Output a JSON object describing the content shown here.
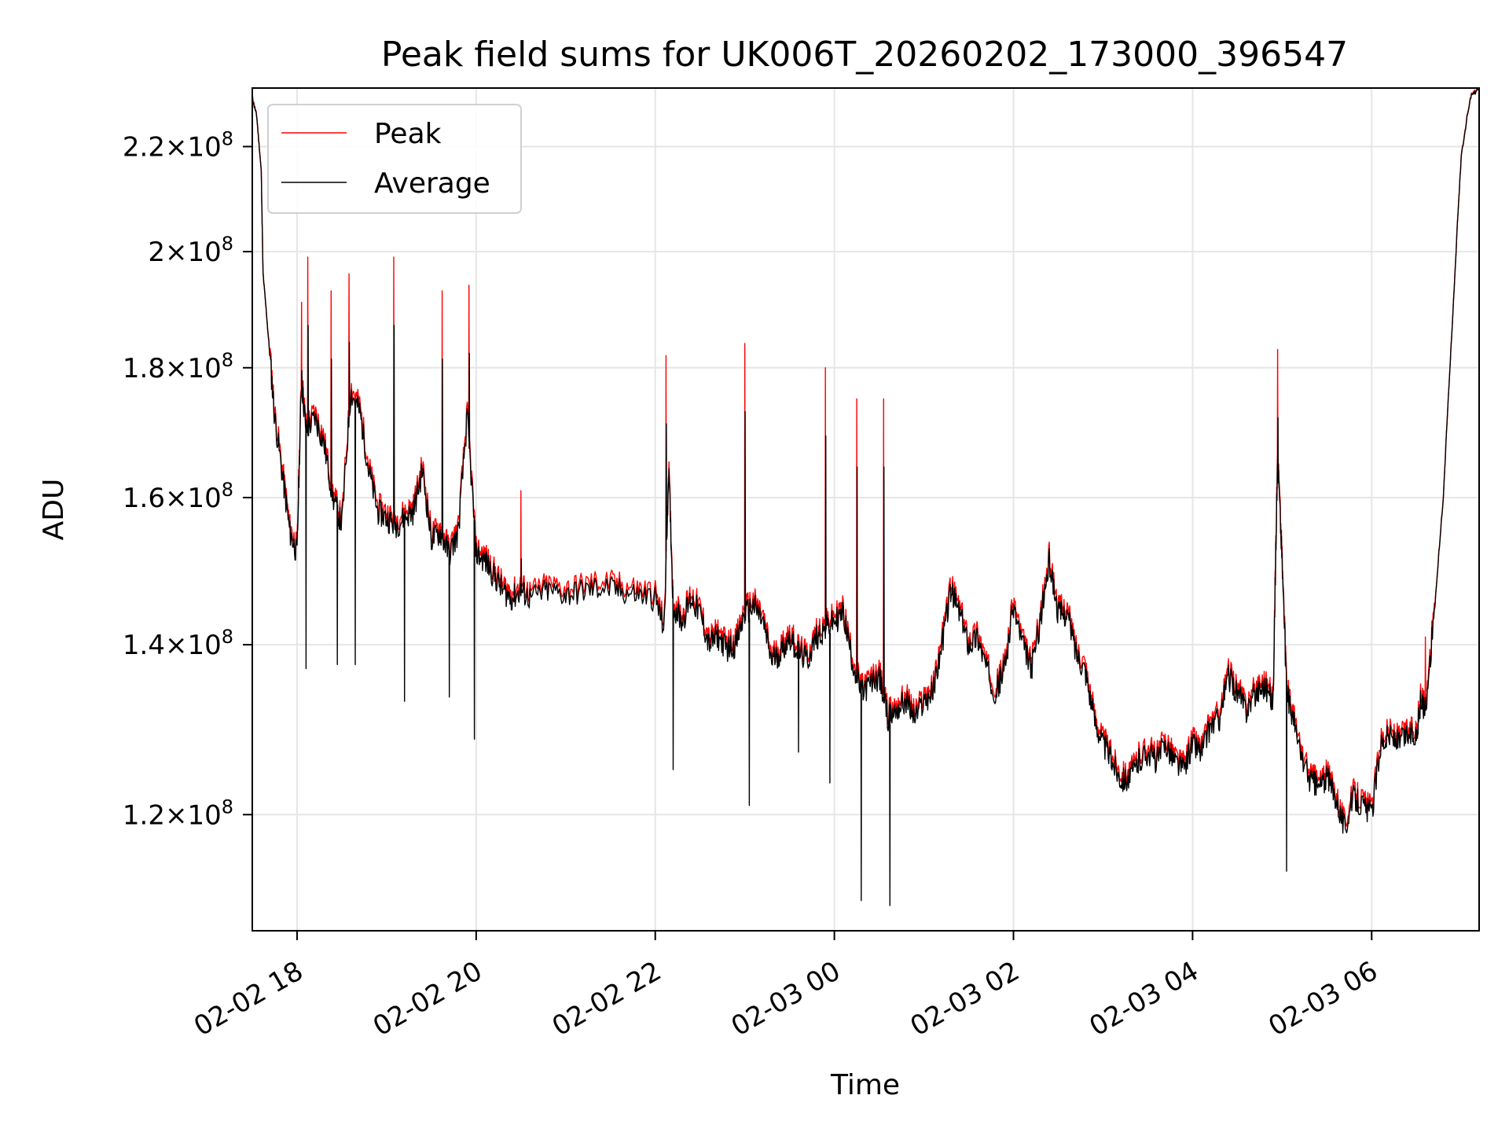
{
  "chart_data": {
    "type": "line",
    "title": "Peak field sums for UK006T_20260202_173000_396547",
    "xlabel": "Time",
    "ylabel": "ADU",
    "y_scale": "log",
    "xlim_hours": [
      17.5,
      7.2
    ],
    "ylim": [
      108000000.0,
      232000000.0
    ],
    "x_ticks": [
      {
        "label": "02-02 18",
        "hour": 18
      },
      {
        "label": "02-02 20",
        "hour": 20
      },
      {
        "label": "02-02 22",
        "hour": 22
      },
      {
        "label": "02-03 00",
        "hour": 24
      },
      {
        "label": "02-03 02",
        "hour": 26
      },
      {
        "label": "02-03 04",
        "hour": 28
      },
      {
        "label": "02-03 06",
        "hour": 30
      }
    ],
    "y_ticks": [
      {
        "mant": "1.2",
        "exp": "8",
        "value": 120000000
      },
      {
        "mant": "1.4",
        "exp": "8",
        "value": 140000000
      },
      {
        "mant": "1.6",
        "exp": "8",
        "value": 160000000
      },
      {
        "mant": "1.8",
        "exp": "8",
        "value": 180000000
      },
      {
        "mant": "2",
        "exp": "8",
        "value": 200000000
      },
      {
        "mant": "2.2",
        "exp": "8",
        "value": 220000000
      }
    ],
    "legend": {
      "position": "top-left",
      "entries": [
        {
          "label": "Peak",
          "color": "#ff0000"
        },
        {
          "label": "Average",
          "color": "#000000"
        }
      ]
    },
    "grid": true,
    "series": [
      {
        "name": "Average",
        "color": "#000000",
        "points": [
          [
            17.5,
            230.0
          ],
          [
            17.55,
            226.0
          ],
          [
            17.6,
            215.0
          ],
          [
            17.62,
            196.0
          ],
          [
            17.68,
            185.0
          ],
          [
            17.75,
            172.0
          ],
          [
            17.85,
            162.0
          ],
          [
            17.92,
            155.0
          ],
          [
            18.0,
            152.0
          ],
          [
            18.05,
            178.0
          ],
          [
            18.1,
            170.0
          ],
          [
            18.2,
            172.0
          ],
          [
            18.3,
            168.0
          ],
          [
            18.4,
            160.0
          ],
          [
            18.5,
            156.0
          ],
          [
            18.6,
            176.0
          ],
          [
            18.7,
            173.0
          ],
          [
            18.8,
            164.0
          ],
          [
            18.9,
            158.0
          ],
          [
            19.0,
            157.0
          ],
          [
            19.1,
            156.0
          ],
          [
            19.2,
            157.0
          ],
          [
            19.3,
            158.0
          ],
          [
            19.4,
            164.0
          ],
          [
            19.5,
            154.0
          ],
          [
            19.6,
            155.0
          ],
          [
            19.7,
            152.0
          ],
          [
            19.8,
            155.0
          ],
          [
            19.9,
            172.0
          ],
          [
            20.0,
            152.0
          ],
          [
            20.1,
            151.0
          ],
          [
            20.2,
            149.0
          ],
          [
            20.3,
            147.0
          ],
          [
            20.4,
            146.0
          ],
          [
            20.5,
            147.0
          ],
          [
            20.6,
            146.0
          ],
          [
            20.8,
            147.0
          ],
          [
            21.0,
            146.5
          ],
          [
            21.2,
            147.0
          ],
          [
            21.4,
            147.5
          ],
          [
            21.6,
            147.0
          ],
          [
            21.8,
            146.5
          ],
          [
            22.0,
            146.0
          ],
          [
            22.1,
            142.0
          ],
          [
            22.15,
            164.0
          ],
          [
            22.2,
            145.0
          ],
          [
            22.3,
            143.0
          ],
          [
            22.4,
            146.0
          ],
          [
            22.5,
            144.0
          ],
          [
            22.6,
            140.0
          ],
          [
            22.7,
            141.0
          ],
          [
            22.8,
            139.5
          ],
          [
            22.9,
            140.0
          ],
          [
            23.0,
            144.0
          ],
          [
            23.1,
            145.0
          ],
          [
            23.2,
            143.0
          ],
          [
            23.3,
            138.0
          ],
          [
            23.4,
            139.0
          ],
          [
            23.5,
            141.0
          ],
          [
            23.6,
            139.0
          ],
          [
            23.7,
            138.0
          ],
          [
            23.8,
            141.0
          ],
          [
            23.9,
            142.0
          ],
          [
            24.0,
            143.0
          ],
          [
            24.1,
            144.0
          ],
          [
            24.2,
            138.0
          ],
          [
            24.3,
            134.0
          ],
          [
            24.4,
            135.0
          ],
          [
            24.5,
            136.0
          ],
          [
            24.6,
            131.0
          ],
          [
            24.7,
            132.0
          ],
          [
            24.8,
            133.0
          ],
          [
            24.9,
            131.0
          ],
          [
            25.0,
            133.0
          ],
          [
            25.1,
            134.0
          ],
          [
            25.2,
            140.0
          ],
          [
            25.3,
            147.0
          ],
          [
            25.4,
            144.0
          ],
          [
            25.5,
            140.0
          ],
          [
            25.6,
            141.0
          ],
          [
            25.7,
            137.0
          ],
          [
            25.8,
            134.0
          ],
          [
            25.9,
            137.0
          ],
          [
            26.0,
            145.0
          ],
          [
            26.1,
            140.0
          ],
          [
            26.2,
            137.0
          ],
          [
            26.3,
            143.0
          ],
          [
            26.4,
            151.0
          ],
          [
            26.5,
            144.0
          ],
          [
            26.6,
            144.0
          ],
          [
            26.7,
            139.0
          ],
          [
            26.8,
            137.0
          ],
          [
            26.9,
            131.0
          ],
          [
            27.0,
            128.0
          ],
          [
            27.1,
            126.0
          ],
          [
            27.2,
            124.0
          ],
          [
            27.3,
            124.0
          ],
          [
            27.4,
            126.0
          ],
          [
            27.5,
            127.0
          ],
          [
            27.6,
            126.0
          ],
          [
            27.7,
            128.0
          ],
          [
            27.8,
            126.0
          ],
          [
            27.9,
            125.0
          ],
          [
            28.0,
            128.0
          ],
          [
            28.1,
            127.0
          ],
          [
            28.2,
            130.0
          ],
          [
            28.3,
            131.0
          ],
          [
            28.4,
            136.0
          ],
          [
            28.5,
            134.0
          ],
          [
            28.6,
            132.0
          ],
          [
            28.7,
            134.0
          ],
          [
            28.8,
            135.0
          ],
          [
            28.9,
            133.0
          ],
          [
            28.95,
            166.0
          ],
          [
            29.0,
            151.0
          ],
          [
            29.05,
            134.0
          ],
          [
            29.1,
            132.0
          ],
          [
            29.2,
            127.0
          ],
          [
            29.3,
            124.0
          ],
          [
            29.4,
            123.0
          ],
          [
            29.5,
            124.0
          ],
          [
            29.6,
            122.0
          ],
          [
            29.7,
            118.5
          ],
          [
            29.8,
            122.0
          ],
          [
            29.9,
            121.0
          ],
          [
            30.0,
            120.0
          ],
          [
            30.1,
            128.0
          ],
          [
            30.2,
            129.0
          ],
          [
            30.3,
            128.0
          ],
          [
            30.4,
            129.0
          ],
          [
            30.5,
            129.0
          ],
          [
            30.55,
            133.0
          ],
          [
            30.6,
            132.0
          ],
          [
            30.7,
            144.0
          ],
          [
            30.8,
            160.0
          ],
          [
            30.9,
            187.0
          ],
          [
            31.0,
            218.0
          ],
          [
            31.1,
            230.0
          ],
          [
            31.2,
            232.0
          ]
        ]
      }
    ],
    "peak_spikes": [
      [
        18.05,
        191.0
      ],
      [
        18.12,
        199.0
      ],
      [
        18.38,
        193.0
      ],
      [
        18.58,
        196.0
      ],
      [
        19.08,
        199.0
      ],
      [
        19.62,
        193.0
      ],
      [
        19.92,
        194.0
      ],
      [
        20.5,
        161.0
      ],
      [
        22.12,
        182.0
      ],
      [
        23.0,
        184.0
      ],
      [
        23.9,
        180.0
      ],
      [
        24.25,
        175.0
      ],
      [
        24.55,
        175.0
      ],
      [
        28.95,
        183.0
      ],
      [
        30.6,
        141.0
      ]
    ],
    "average_dips": [
      [
        18.1,
        137.0
      ],
      [
        18.45,
        137.5
      ],
      [
        18.65,
        137.5
      ],
      [
        19.2,
        133.0
      ],
      [
        19.7,
        133.5
      ],
      [
        19.98,
        128.5
      ],
      [
        22.2,
        125.0
      ],
      [
        23.05,
        121.0
      ],
      [
        23.6,
        127.0
      ],
      [
        23.95,
        123.5
      ],
      [
        24.3,
        111.0
      ],
      [
        24.62,
        110.5
      ],
      [
        29.05,
        114.0
      ]
    ]
  }
}
